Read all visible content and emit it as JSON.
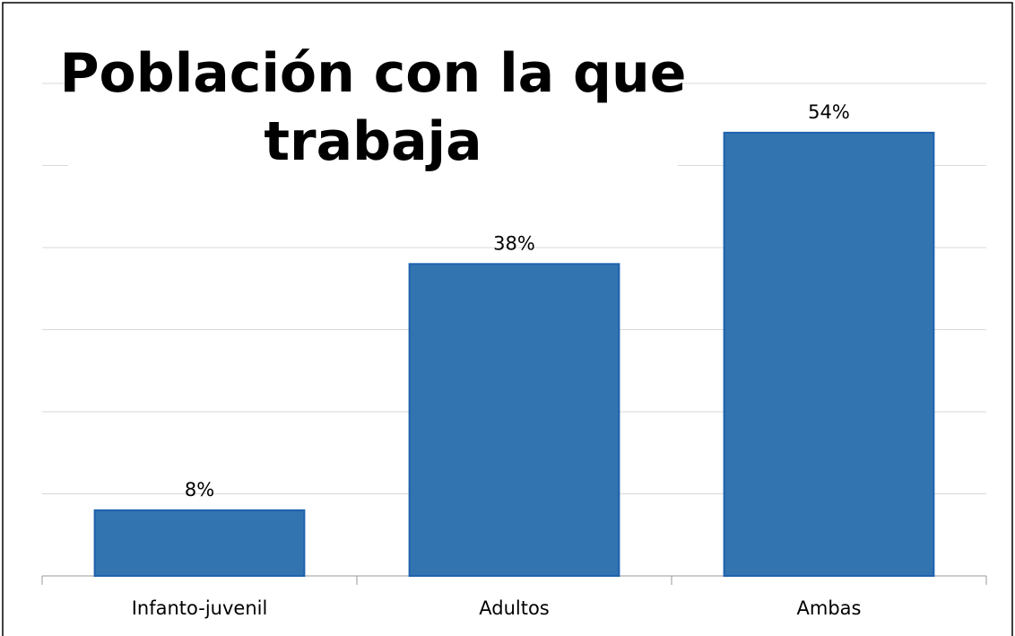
{
  "chart_data": {
    "type": "bar",
    "title": "Población con la que trabaja",
    "categories": [
      "Infanto-juvenil",
      "Adultos",
      "Ambas"
    ],
    "values": [
      8,
      38,
      54
    ],
    "value_labels": [
      "8%",
      "38%",
      "54%"
    ],
    "color": "#3274b0",
    "ylim": [
      0,
      60
    ],
    "yticks": [
      0,
      10,
      20,
      30,
      40,
      50,
      60
    ],
    "grid": true
  }
}
